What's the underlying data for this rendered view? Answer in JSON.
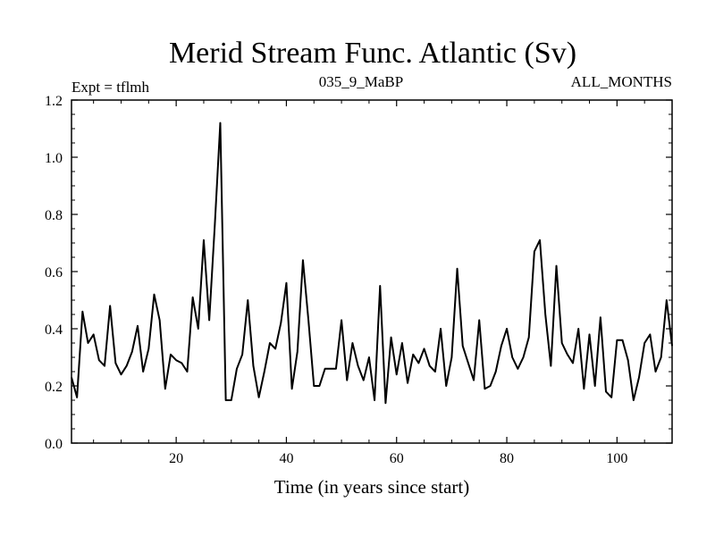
{
  "chart_data": {
    "type": "line",
    "title": "Merid Stream Func. Atlantic (Sv)",
    "header_left": "Expt = tflmh",
    "header_center": "035_9_MaBP",
    "header_right": "ALL_MONTHS",
    "xlabel": "Time (in years since start)",
    "ylabel": "",
    "xlim": [
      1,
      110
    ],
    "ylim": [
      0.0,
      1.2
    ],
    "x_ticks": [
      20,
      40,
      60,
      80,
      100
    ],
    "y_ticks": [
      0.0,
      0.2,
      0.4,
      0.6,
      0.8,
      1.0,
      1.2
    ],
    "y_tick_labels": [
      "0.0",
      "0.2",
      "0.4",
      "0.6",
      "0.8",
      "1.0",
      "1.2"
    ],
    "series": [
      {
        "name": "Merid Stream Func. Atlantic",
        "color": "#000000",
        "x_start": 1,
        "values": [
          0.23,
          0.16,
          0.46,
          0.35,
          0.38,
          0.29,
          0.27,
          0.48,
          0.28,
          0.24,
          0.27,
          0.32,
          0.41,
          0.25,
          0.33,
          0.52,
          0.43,
          0.19,
          0.31,
          0.29,
          0.28,
          0.25,
          0.51,
          0.4,
          0.71,
          0.43,
          0.76,
          1.12,
          0.15,
          0.15,
          0.26,
          0.31,
          0.5,
          0.27,
          0.16,
          0.25,
          0.35,
          0.33,
          0.42,
          0.56,
          0.19,
          0.32,
          0.64,
          0.43,
          0.2,
          0.2,
          0.26,
          0.26,
          0.26,
          0.43,
          0.22,
          0.35,
          0.27,
          0.22,
          0.3,
          0.15,
          0.55,
          0.14,
          0.37,
          0.24,
          0.35,
          0.21,
          0.31,
          0.28,
          0.33,
          0.27,
          0.25,
          0.4,
          0.2,
          0.3,
          0.61,
          0.34,
          0.28,
          0.22,
          0.43,
          0.19,
          0.2,
          0.25,
          0.34,
          0.4,
          0.3,
          0.26,
          0.3,
          0.37,
          0.67,
          0.71,
          0.45,
          0.27,
          0.62,
          0.35,
          0.31,
          0.28,
          0.4,
          0.19,
          0.38,
          0.2,
          0.44,
          0.18,
          0.16,
          0.36,
          0.36,
          0.29,
          0.15,
          0.23,
          0.35,
          0.38,
          0.25,
          0.3,
          0.5,
          0.34
        ]
      }
    ]
  }
}
